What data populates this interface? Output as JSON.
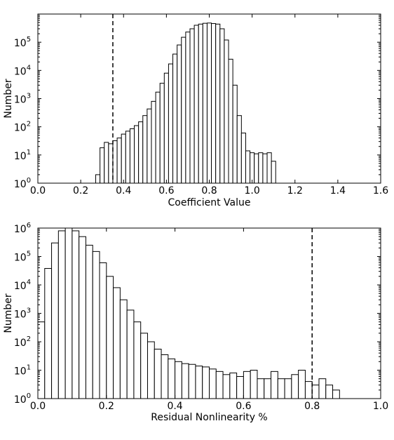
{
  "chart_data": [
    {
      "type": "bar",
      "subtype": "histogram",
      "xlabel": "Coefficient Value",
      "ylabel": "Number",
      "xlim": [
        0.0,
        1.6
      ],
      "ylim": [
        1,
        1000000
      ],
      "yscale": "log",
      "xticks": [
        "0.0",
        "0.2",
        "0.4",
        "0.6",
        "0.8",
        "1.0",
        "1.2",
        "1.4",
        "1.6"
      ],
      "yticks": [
        {
          "base": "10",
          "exp": "0"
        },
        {
          "base": "10",
          "exp": "1"
        },
        {
          "base": "10",
          "exp": "2"
        },
        {
          "base": "10",
          "exp": "3"
        },
        {
          "base": "10",
          "exp": "4"
        },
        {
          "base": "10",
          "exp": "5"
        }
      ],
      "bin_start": 0.27,
      "bin_width": 0.02,
      "values": [
        2,
        18,
        28,
        25,
        32,
        40,
        55,
        70,
        85,
        110,
        150,
        250,
        430,
        800,
        1700,
        3500,
        8000,
        17000,
        38000,
        80000,
        150000,
        230000,
        300000,
        400000,
        440000,
        470000,
        480000,
        460000,
        440000,
        300000,
        120000,
        25000,
        3000,
        250,
        60,
        14,
        12,
        11,
        12,
        11,
        12,
        6
      ],
      "threshold_line": 0.35,
      "grid": false,
      "legend": "none"
    },
    {
      "type": "bar",
      "subtype": "histogram",
      "xlabel": "Residual Nonlinearity %",
      "ylabel": "Number",
      "xlim": [
        0.0,
        1.0
      ],
      "ylim": [
        1,
        1000000
      ],
      "yscale": "log",
      "xticks": [
        "0.0",
        "0.2",
        "0.4",
        "0.6",
        "0.8",
        "1.0"
      ],
      "yticks": [
        {
          "base": "10",
          "exp": "0"
        },
        {
          "base": "10",
          "exp": "1"
        },
        {
          "base": "10",
          "exp": "2"
        },
        {
          "base": "10",
          "exp": "3"
        },
        {
          "base": "10",
          "exp": "4"
        },
        {
          "base": "10",
          "exp": "5"
        },
        {
          "base": "10",
          "exp": "6"
        }
      ],
      "bin_start": 0.0,
      "bin_width": 0.02,
      "values": [
        500,
        38000,
        300000,
        800000,
        1000000,
        800000,
        500000,
        250000,
        150000,
        60000,
        20000,
        8000,
        3000,
        1300,
        500,
        200,
        100,
        55,
        35,
        25,
        20,
        17,
        16,
        14,
        13,
        11,
        9,
        7,
        8,
        6,
        9,
        10,
        5,
        5,
        9,
        5,
        5,
        7,
        10,
        4,
        3,
        5,
        3,
        2
      ],
      "threshold_line": 0.8,
      "grid": false,
      "legend": "none"
    }
  ]
}
